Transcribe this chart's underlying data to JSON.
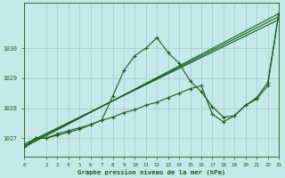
{
  "title": "Graphe pression niveau de la mer (hPa)",
  "bg_color": "#c5e8e8",
  "grid_color": "#aacece",
  "line_color": "#1a5c1a",
  "xlim": [
    0,
    23
  ],
  "ylim": [
    1026.4,
    1031.5
  ],
  "yticks": [
    1027,
    1028,
    1029,
    1030
  ],
  "xticks": [
    0,
    2,
    3,
    4,
    5,
    6,
    7,
    8,
    9,
    10,
    11,
    12,
    13,
    14,
    15,
    16,
    17,
    18,
    19,
    20,
    21,
    22,
    23
  ],
  "series_volatile": {
    "x": [
      0,
      1,
      2,
      3,
      4,
      5,
      6,
      7,
      8,
      9,
      10,
      11,
      12,
      13,
      14,
      15,
      16,
      17,
      18,
      19,
      20,
      21,
      22,
      23
    ],
    "y": [
      1026.7,
      1027.0,
      1027.0,
      1027.15,
      1027.25,
      1027.35,
      1027.45,
      1027.6,
      1028.4,
      1029.25,
      1029.75,
      1030.0,
      1030.35,
      1029.85,
      1029.5,
      1028.9,
      1028.55,
      1028.05,
      1027.7,
      1027.75,
      1028.1,
      1028.35,
      1028.85,
      1031.15
    ]
  },
  "series_smooth": {
    "x": [
      0,
      1,
      2,
      3,
      4,
      5,
      6,
      7,
      8,
      9,
      10,
      11,
      12,
      13,
      14,
      15,
      16,
      17,
      18,
      19,
      20,
      21,
      22,
      23
    ],
    "y": [
      1026.7,
      1027.0,
      1027.0,
      1027.1,
      1027.2,
      1027.3,
      1027.45,
      1027.6,
      1027.7,
      1027.85,
      1027.95,
      1028.1,
      1028.2,
      1028.35,
      1028.5,
      1028.65,
      1028.75,
      1027.8,
      1027.55,
      1027.75,
      1028.1,
      1028.3,
      1028.75,
      1031.15
    ]
  },
  "series_line1": {
    "x": [
      0,
      23
    ],
    "y": [
      1026.7,
      1031.15
    ]
  },
  "series_line2": {
    "x": [
      0,
      23
    ],
    "y": [
      1026.75,
      1031.05
    ]
  },
  "series_line3": {
    "x": [
      0,
      23
    ],
    "y": [
      1026.8,
      1030.95
    ]
  }
}
